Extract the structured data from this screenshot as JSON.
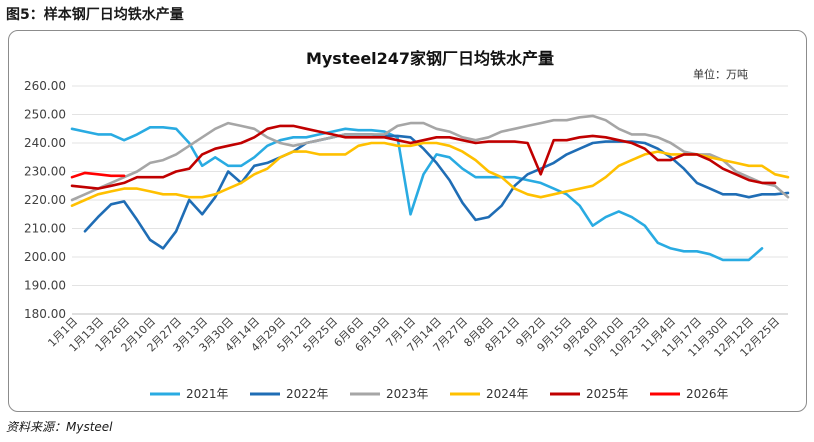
{
  "figure_caption": "图5：样本钢厂日均铁水产量",
  "source_note": "资料来源：Mysteel",
  "chart_data": {
    "type": "line",
    "title": "Mysteel247家钢厂日均铁水产量",
    "unit_label": "单位：万吨",
    "ylim": [
      180,
      260
    ],
    "y_ticks": [
      "180.00",
      "190.00",
      "200.00",
      "210.00",
      "220.00",
      "230.00",
      "240.00",
      "250.00",
      "260.00"
    ],
    "x_tick_labels": [
      "1月1日",
      "1月13日",
      "1月26日",
      "2月10日",
      "2月27日",
      "3月13日",
      "3月30日",
      "4月14日",
      "4月29日",
      "5月12日",
      "5月25日",
      "6月6日",
      "6月19日",
      "7月1日",
      "7月14日",
      "7月27日",
      "8月8日",
      "8月21日",
      "9月2日",
      "9月15日",
      "9月28日",
      "10月10日",
      "10月23日",
      "11月4日",
      "11月17日",
      "11月30日",
      "12月12日",
      "12月25日"
    ],
    "grid": true,
    "legend_position": "bottom",
    "series": [
      {
        "name": "2021年",
        "color": "#29ABE2",
        "values": [
          [
            0,
            245
          ],
          [
            1,
            244
          ],
          [
            2,
            243
          ],
          [
            3,
            243
          ],
          [
            4,
            241
          ],
          [
            5,
            243
          ],
          [
            6,
            245.5
          ],
          [
            7,
            245.5
          ],
          [
            8,
            245
          ],
          [
            9,
            240
          ],
          [
            10,
            232
          ],
          [
            11,
            235
          ],
          [
            12,
            232
          ],
          [
            13,
            232
          ],
          [
            14,
            235
          ],
          [
            15,
            239
          ],
          [
            16,
            241
          ],
          [
            17,
            242
          ],
          [
            18,
            242
          ],
          [
            19,
            243
          ],
          [
            20,
            244
          ],
          [
            21,
            245
          ],
          [
            22,
            244.5
          ],
          [
            23,
            244.5
          ],
          [
            24,
            244
          ],
          [
            25,
            242
          ],
          [
            26,
            215
          ],
          [
            27,
            229
          ],
          [
            28,
            236
          ],
          [
            29,
            235
          ],
          [
            30,
            231
          ],
          [
            31,
            228
          ],
          [
            32,
            228
          ],
          [
            33,
            228
          ],
          [
            34,
            228
          ],
          [
            35,
            227
          ],
          [
            36,
            226
          ],
          [
            37,
            224
          ],
          [
            38,
            222
          ],
          [
            39,
            218
          ],
          [
            40,
            211
          ],
          [
            41,
            214
          ],
          [
            42,
            216
          ],
          [
            43,
            214
          ],
          [
            44,
            211
          ],
          [
            45,
            205
          ],
          [
            46,
            203
          ],
          [
            47,
            202
          ],
          [
            48,
            202
          ],
          [
            49,
            201
          ],
          [
            50,
            199
          ],
          [
            51,
            199
          ],
          [
            52,
            199
          ],
          [
            53,
            203
          ]
        ]
      },
      {
        "name": "2022年",
        "color": "#1F6DB5",
        "values": [
          [
            1,
            209
          ],
          [
            2,
            214
          ],
          [
            3,
            218.5
          ],
          [
            4,
            219.5
          ],
          [
            5,
            213
          ],
          [
            6,
            206
          ],
          [
            7,
            203
          ],
          [
            8,
            209
          ],
          [
            9,
            220
          ],
          [
            10,
            215
          ],
          [
            11,
            221
          ],
          [
            12,
            230
          ],
          [
            13,
            226
          ],
          [
            14,
            232
          ],
          [
            15,
            233
          ],
          [
            16,
            235
          ],
          [
            17,
            237
          ],
          [
            18,
            240
          ],
          [
            19,
            241
          ],
          [
            20,
            242
          ],
          [
            21,
            243
          ],
          [
            22,
            243
          ],
          [
            23,
            243
          ],
          [
            24,
            242.5
          ],
          [
            25,
            242.5
          ],
          [
            26,
            242
          ],
          [
            27,
            238
          ],
          [
            28,
            233
          ],
          [
            29,
            227
          ],
          [
            30,
            219
          ],
          [
            31,
            213
          ],
          [
            32,
            214
          ],
          [
            33,
            218
          ],
          [
            34,
            225
          ],
          [
            35,
            229
          ],
          [
            36,
            231
          ],
          [
            37,
            233
          ],
          [
            38,
            236
          ],
          [
            39,
            238
          ],
          [
            40,
            240
          ],
          [
            41,
            240.5
          ],
          [
            42,
            240.5
          ],
          [
            43,
            240.5
          ],
          [
            44,
            240
          ],
          [
            45,
            238
          ],
          [
            46,
            235
          ],
          [
            47,
            231
          ],
          [
            48,
            226
          ],
          [
            49,
            224
          ],
          [
            50,
            222
          ],
          [
            51,
            222
          ],
          [
            52,
            221
          ],
          [
            53,
            222
          ],
          [
            54,
            222
          ],
          [
            55,
            222.5
          ]
        ]
      },
      {
        "name": "2023年",
        "color": "#A6A6A6",
        "values": [
          [
            0,
            220
          ],
          [
            1,
            222
          ],
          [
            2,
            224
          ],
          [
            3,
            226
          ],
          [
            4,
            228
          ],
          [
            5,
            230
          ],
          [
            6,
            233
          ],
          [
            7,
            234
          ],
          [
            8,
            236
          ],
          [
            9,
            239
          ],
          [
            10,
            242
          ],
          [
            11,
            245
          ],
          [
            12,
            247
          ],
          [
            13,
            246
          ],
          [
            14,
            245
          ],
          [
            15,
            242
          ],
          [
            16,
            240
          ],
          [
            17,
            239
          ],
          [
            18,
            240
          ],
          [
            19,
            241
          ],
          [
            20,
            242
          ],
          [
            21,
            243
          ],
          [
            22,
            243
          ],
          [
            23,
            243
          ],
          [
            24,
            243
          ],
          [
            25,
            246
          ],
          [
            26,
            247
          ],
          [
            27,
            247
          ],
          [
            28,
            245
          ],
          [
            29,
            244
          ],
          [
            30,
            242
          ],
          [
            31,
            241
          ],
          [
            32,
            242
          ],
          [
            33,
            244
          ],
          [
            34,
            245
          ],
          [
            35,
            246
          ],
          [
            36,
            247
          ],
          [
            37,
            248
          ],
          [
            38,
            248
          ],
          [
            39,
            249
          ],
          [
            40,
            249.5
          ],
          [
            41,
            248
          ],
          [
            42,
            245
          ],
          [
            43,
            243
          ],
          [
            44,
            243
          ],
          [
            45,
            242
          ],
          [
            46,
            240
          ],
          [
            47,
            237
          ],
          [
            48,
            236
          ],
          [
            49,
            236
          ],
          [
            50,
            234
          ],
          [
            51,
            230
          ],
          [
            52,
            228
          ],
          [
            53,
            226
          ],
          [
            54,
            225
          ],
          [
            55,
            221
          ]
        ]
      },
      {
        "name": "2024年",
        "color": "#FFC000",
        "values": [
          [
            0,
            218
          ],
          [
            1,
            220
          ],
          [
            2,
            222
          ],
          [
            3,
            223
          ],
          [
            4,
            224
          ],
          [
            5,
            224
          ],
          [
            6,
            223
          ],
          [
            7,
            222
          ],
          [
            8,
            222
          ],
          [
            9,
            221
          ],
          [
            10,
            221
          ],
          [
            11,
            222
          ],
          [
            12,
            224
          ],
          [
            13,
            226
          ],
          [
            14,
            229
          ],
          [
            15,
            231
          ],
          [
            16,
            235
          ],
          [
            17,
            237
          ],
          [
            18,
            237
          ],
          [
            19,
            236
          ],
          [
            20,
            236
          ],
          [
            21,
            236
          ],
          [
            22,
            239
          ],
          [
            23,
            240
          ],
          [
            24,
            240
          ],
          [
            25,
            239
          ],
          [
            26,
            239
          ],
          [
            27,
            240
          ],
          [
            28,
            240
          ],
          [
            29,
            239
          ],
          [
            30,
            237
          ],
          [
            31,
            234
          ],
          [
            32,
            230
          ],
          [
            33,
            228
          ],
          [
            34,
            224
          ],
          [
            35,
            222
          ],
          [
            36,
            221
          ],
          [
            37,
            222
          ],
          [
            38,
            223
          ],
          [
            39,
            224
          ],
          [
            40,
            225
          ],
          [
            41,
            228
          ],
          [
            42,
            232
          ],
          [
            43,
            234
          ],
          [
            44,
            236
          ],
          [
            45,
            237
          ],
          [
            46,
            236
          ],
          [
            47,
            236
          ],
          [
            48,
            236
          ],
          [
            49,
            235
          ],
          [
            50,
            234
          ],
          [
            51,
            233
          ],
          [
            52,
            232
          ],
          [
            53,
            232
          ],
          [
            54,
            229
          ],
          [
            55,
            228
          ]
        ]
      },
      {
        "name": "2025年",
        "color": "#C00000",
        "values": [
          [
            0,
            225
          ],
          [
            1,
            224.5
          ],
          [
            2,
            224
          ],
          [
            3,
            225
          ],
          [
            4,
            226
          ],
          [
            5,
            228
          ],
          [
            6,
            228
          ],
          [
            7,
            228
          ],
          [
            8,
            230
          ],
          [
            9,
            231
          ],
          [
            10,
            236
          ],
          [
            11,
            238
          ],
          [
            12,
            239
          ],
          [
            13,
            240
          ],
          [
            14,
            242
          ],
          [
            15,
            245
          ],
          [
            16,
            246
          ],
          [
            17,
            246
          ],
          [
            18,
            245
          ],
          [
            19,
            244
          ],
          [
            20,
            243
          ],
          [
            21,
            242
          ],
          [
            22,
            242
          ],
          [
            23,
            242
          ],
          [
            24,
            242
          ],
          [
            25,
            241
          ],
          [
            26,
            240
          ],
          [
            27,
            241
          ],
          [
            28,
            242
          ],
          [
            29,
            242
          ],
          [
            30,
            241
          ],
          [
            31,
            240
          ],
          [
            32,
            240.5
          ],
          [
            33,
            240.5
          ],
          [
            34,
            240.5
          ],
          [
            35,
            240
          ],
          [
            36,
            229
          ],
          [
            37,
            241
          ],
          [
            38,
            241
          ],
          [
            39,
            242
          ],
          [
            40,
            242.5
          ],
          [
            41,
            242
          ],
          [
            42,
            241
          ],
          [
            43,
            240
          ],
          [
            44,
            238
          ],
          [
            45,
            234
          ],
          [
            46,
            234
          ],
          [
            47,
            236
          ],
          [
            48,
            236
          ],
          [
            49,
            234
          ],
          [
            50,
            231
          ],
          [
            51,
            229
          ],
          [
            52,
            227
          ],
          [
            53,
            226
          ],
          [
            54,
            226
          ]
        ]
      },
      {
        "name": "2026年",
        "color": "#FF0000",
        "values": [
          [
            0,
            228
          ],
          [
            1,
            229.5
          ],
          [
            2,
            229
          ],
          [
            3,
            228.5
          ],
          [
            4,
            228.5
          ]
        ]
      }
    ]
  }
}
